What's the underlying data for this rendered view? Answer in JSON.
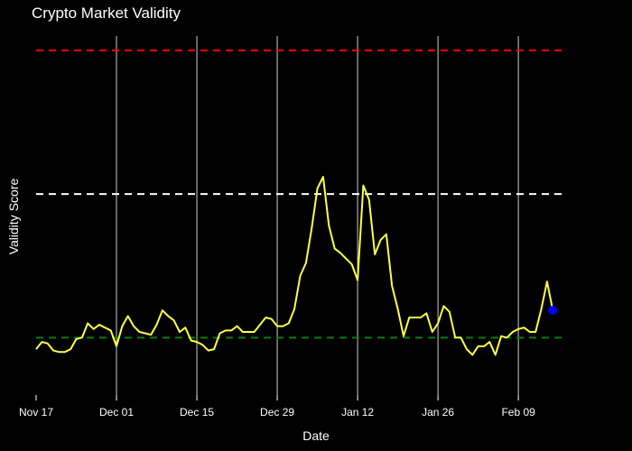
{
  "chart_data": {
    "type": "line",
    "title": "Crypto Market Validity",
    "xlabel": "Date",
    "ylabel": "Validity Score",
    "x_start": "2023-11-17",
    "x_end": "2024-02-13",
    "xlim": [
      "2023-11-17",
      "2024-02-17"
    ],
    "ylim": [
      -0.2,
      1.05
    ],
    "x_ticks": [
      {
        "date": "2023-11-17",
        "label": "Nov 17"
      },
      {
        "date": "2023-12-01",
        "label": "Dec 01"
      },
      {
        "date": "2023-12-15",
        "label": "Dec 15"
      },
      {
        "date": "2023-12-29",
        "label": "Dec 29"
      },
      {
        "date": "2024-01-12",
        "label": "Jan 12"
      },
      {
        "date": "2024-01-26",
        "label": "Jan 26"
      },
      {
        "date": "2024-02-09",
        "label": "Feb 09"
      }
    ],
    "y_ticks_shown": false,
    "grid": "vertical",
    "values": [
      -0.04,
      -0.015,
      -0.02,
      -0.045,
      -0.05,
      -0.05,
      -0.04,
      -0.005,
      0.0,
      0.05,
      0.03,
      0.045,
      0.035,
      0.025,
      -0.03,
      0.04,
      0.075,
      0.04,
      0.02,
      0.015,
      0.01,
      0.045,
      0.095,
      0.075,
      0.06,
      0.02,
      0.035,
      -0.01,
      -0.015,
      -0.025,
      -0.045,
      -0.04,
      0.015,
      0.025,
      0.025,
      0.04,
      0.02,
      0.02,
      0.02,
      0.045,
      0.07,
      0.065,
      0.04,
      0.04,
      0.05,
      0.1,
      0.215,
      0.26,
      0.38,
      0.52,
      0.56,
      0.39,
      0.31,
      0.295,
      0.275,
      0.255,
      0.2,
      0.53,
      0.48,
      0.29,
      0.34,
      0.36,
      0.18,
      0.1,
      0.005,
      0.07,
      0.07,
      0.07,
      0.085,
      0.02,
      0.05,
      0.11,
      0.09,
      0.0,
      0.0,
      -0.04,
      -0.06,
      -0.03,
      -0.03,
      -0.015,
      -0.06,
      0.005,
      0.0,
      0.02,
      0.03,
      0.035,
      0.02,
      0.02,
      0.1,
      0.195,
      0.095
    ],
    "last_point_marker": {
      "value": 0.095,
      "color": "#0000ff"
    },
    "reference_lines": [
      {
        "y": 1.0,
        "color": "#ff0000",
        "style": "dashed"
      },
      {
        "y": 0.5,
        "color": "#ffffff",
        "style": "dashed"
      },
      {
        "y": 0.0,
        "color": "#008000",
        "style": "dashed"
      }
    ],
    "line_color": "#ffff44",
    "background": "#000000",
    "gridline_color": "#cccccc"
  }
}
